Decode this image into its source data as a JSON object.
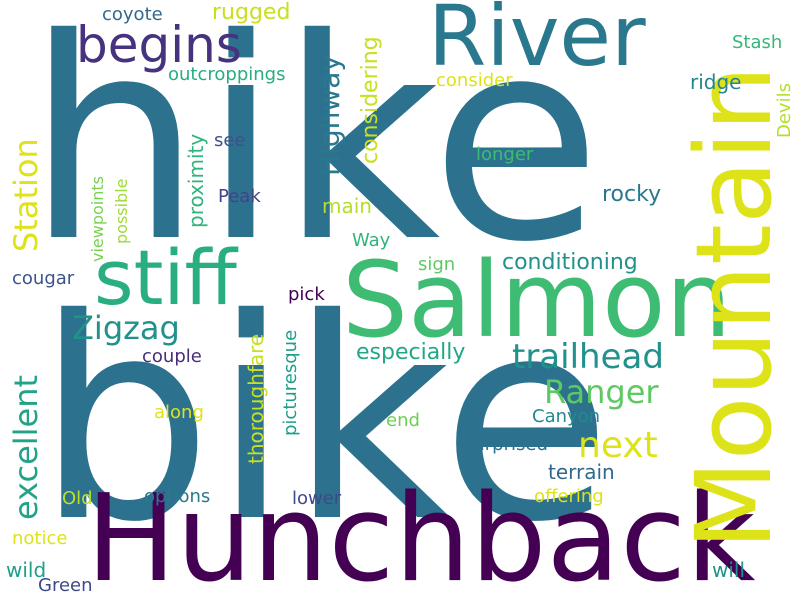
{
  "words": {
    "hike": {
      "text": "hike",
      "color": "#2c728e"
    },
    "bike": {
      "text": "bike",
      "color": "#2c728e"
    },
    "hunchback": {
      "text": "Hunchback",
      "color": "#440154"
    },
    "salmon": {
      "text": "Salmon",
      "color": "#3fbc73"
    },
    "mountain": {
      "text": "Mountain",
      "color": "#dde318"
    },
    "river": {
      "text": "River",
      "color": "#2a788e"
    },
    "stiff": {
      "text": "stiff",
      "color": "#29af7f"
    },
    "begins": {
      "text": "begins",
      "color": "#46327e"
    },
    "trailhead": {
      "text": "trailhead",
      "color": "#21918c"
    },
    "zigzag": {
      "text": "Zigzag",
      "color": "#21918c"
    },
    "next": {
      "text": "next",
      "color": "#dde318"
    },
    "ranger": {
      "text": "Ranger",
      "color": "#5ec962"
    },
    "station": {
      "text": "Station",
      "color": "#dde318"
    },
    "excellent": {
      "text": "excellent",
      "color": "#20a386"
    },
    "highway": {
      "text": "Highway",
      "color": "#2a788e"
    },
    "considering": {
      "text": "considering",
      "color": "#c8e020"
    },
    "conditioning": {
      "text": "conditioning",
      "color": "#21918c"
    },
    "especially": {
      "text": "especially",
      "color": "#22a884"
    },
    "rugged": {
      "text": "rugged",
      "color": "#c8e020"
    },
    "coyote": {
      "text": "coyote",
      "color": "#31688e"
    },
    "outcroppings": {
      "text": "outcroppings",
      "color": "#27ad81"
    },
    "consider": {
      "text": "consider",
      "color": "#dde318"
    },
    "stash": {
      "text": "Stash",
      "color": "#35b779"
    },
    "ridge": {
      "text": "ridge",
      "color": "#25858e"
    },
    "devils": {
      "text": "Devils",
      "color": "#b5de2b"
    },
    "longer": {
      "text": "longer",
      "color": "#3fbc73"
    },
    "rocky": {
      "text": "rocky",
      "color": "#2a788e"
    },
    "main": {
      "text": "main",
      "color": "#b5de2b"
    },
    "way": {
      "text": "Way",
      "color": "#2fb47c"
    },
    "sign": {
      "text": "sign",
      "color": "#5ec962"
    },
    "see": {
      "text": "see",
      "color": "#3b528b"
    },
    "peak": {
      "text": "Peak",
      "color": "#414487"
    },
    "proximity": {
      "text": "proximity",
      "color": "#2fb47c"
    },
    "viewpoints": {
      "text": "viewpoints",
      "color": "#7ad151"
    },
    "possible": {
      "text": "possible",
      "color": "#a0da39"
    },
    "cougar": {
      "text": "cougar",
      "color": "#3b528b"
    },
    "pick": {
      "text": "pick",
      "color": "#440154"
    },
    "thoroughfare": {
      "text": "thoroughfare",
      "color": "#c8e020"
    },
    "picturesque": {
      "text": "picturesque",
      "color": "#1f9e89"
    },
    "couple": {
      "text": "couple",
      "color": "#472d7b"
    },
    "along": {
      "text": "along",
      "color": "#dde318"
    },
    "end": {
      "text": "end",
      "color": "#6ece58"
    },
    "canyon": {
      "text": "Canyon",
      "color": "#23898e"
    },
    "surprised": {
      "text": "surprised",
      "color": "#2c728e"
    },
    "terrain": {
      "text": "terrain",
      "color": "#31688e"
    },
    "old": {
      "text": "Old",
      "color": "#bddf26"
    },
    "options": {
      "text": "options",
      "color": "#2a788e"
    },
    "lower": {
      "text": "lower",
      "color": "#3e4989"
    },
    "offering": {
      "text": "offering",
      "color": "#dde318"
    },
    "notice": {
      "text": "notice",
      "color": "#dde318"
    },
    "wild": {
      "text": "wild",
      "color": "#1f9e89"
    },
    "green": {
      "text": "Green",
      "color": "#3e4989"
    },
    "will": {
      "text": "will",
      "color": "#21918c"
    }
  }
}
